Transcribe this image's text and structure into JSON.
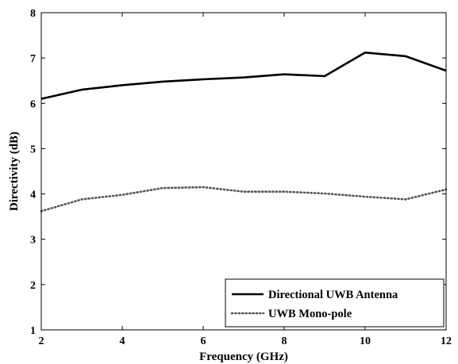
{
  "chart_data": {
    "type": "line",
    "title": "",
    "xlabel": "Frequency (GHz)",
    "ylabel": "Directivity (dB)",
    "xlim": [
      2,
      12
    ],
    "ylim": [
      1,
      8
    ],
    "xticks": [
      2,
      4,
      6,
      8,
      10,
      12
    ],
    "yticks": [
      1,
      2,
      3,
      4,
      5,
      6,
      7,
      8
    ],
    "grid": false,
    "legend_position": "bottom-right",
    "x": [
      2,
      3,
      4,
      5,
      6,
      7,
      8,
      9,
      10,
      11,
      12
    ],
    "series": [
      {
        "name": "Directional UWB Antenna",
        "values": [
          6.1,
          6.3,
          6.4,
          6.48,
          6.53,
          6.57,
          6.64,
          6.6,
          7.12,
          7.04,
          6.72
        ],
        "color": "#000000",
        "style": "solid"
      },
      {
        "name": "UWB Mono-pole",
        "values": [
          3.62,
          3.88,
          3.98,
          4.13,
          4.15,
          4.05,
          4.05,
          4.01,
          3.94,
          3.88,
          4.1
        ],
        "color": "#555555",
        "style": "dotted"
      }
    ]
  }
}
